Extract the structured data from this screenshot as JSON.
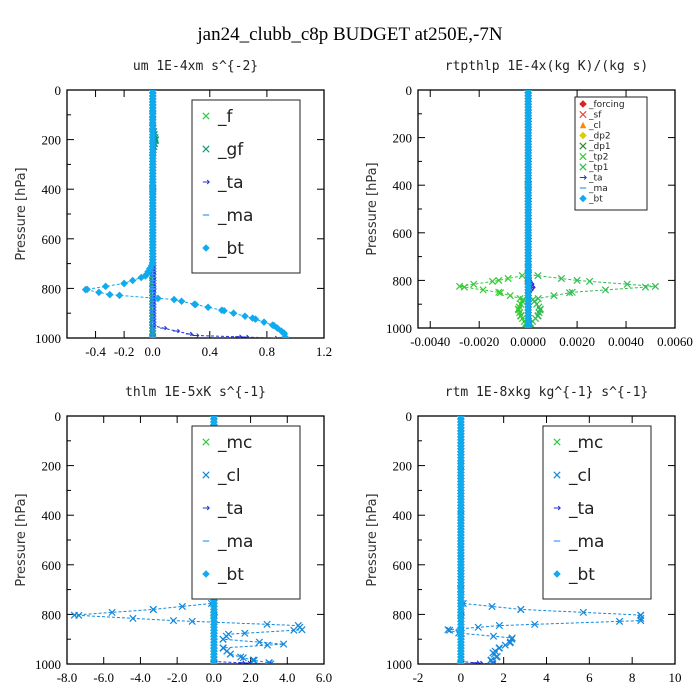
{
  "figure_title": "jan24_clubb_c8p  BUDGET at250E,-7N",
  "chart_data": [
    {
      "type": "line",
      "title": "um   1E-4xm s^{-2}",
      "ylabel": "Pressure [hPa]",
      "xlim": [
        -0.6,
        1.2
      ],
      "ylim": [
        1000,
        0
      ],
      "x_ticks": [
        -0.4,
        -0.2,
        0.0,
        0.4,
        0.8,
        1.2
      ],
      "x_tick_labels": [
        "-0.4",
        "-0.2",
        "0.0",
        "0.4",
        "0.8",
        "1.2"
      ],
      "y_ticks": [
        0,
        200,
        400,
        600,
        800,
        1000
      ],
      "y_tick_labels": [
        "0",
        "200",
        "400",
        "600",
        "800",
        "1000"
      ],
      "legend_size": "large",
      "legend_position": "top-right",
      "series": [
        {
          "name": "_f",
          "color": "#2ecc40",
          "marker": "x",
          "points": [
            [
              0,
              0
            ],
            [
              0,
              200
            ],
            [
              0,
              400
            ],
            [
              0,
              600
            ],
            [
              0,
              750
            ],
            [
              0,
              800
            ],
            [
              0,
              850
            ],
            [
              0,
              900
            ],
            [
              0,
              950
            ],
            [
              0,
              1000
            ]
          ]
        },
        {
          "name": "_gf",
          "color": "#109a7a",
          "marker": "x",
          "points": [
            [
              0,
              0
            ],
            [
              0,
              100
            ],
            [
              0,
              150
            ],
            [
              0.02,
              200
            ],
            [
              0,
              250
            ],
            [
              0,
              400
            ],
            [
              0,
              600
            ],
            [
              0,
              750
            ],
            [
              0,
              800
            ],
            [
              0,
              900
            ],
            [
              0,
              1000
            ]
          ]
        },
        {
          "name": "_ta",
          "color": "#2233dd",
          "marker": "arrow",
          "points": [
            [
              0,
              0
            ],
            [
              0,
              400
            ],
            [
              0,
              800
            ],
            [
              0,
              950
            ],
            [
              0.3,
              990
            ],
            [
              0.6,
              995
            ],
            [
              0.85,
              1000
            ]
          ]
        },
        {
          "name": "_ma",
          "color": "#3399ff",
          "marker": "dash",
          "points": [
            [
              0,
              0
            ],
            [
              0,
              400
            ],
            [
              0,
              800
            ],
            [
              0,
              1000
            ]
          ]
        },
        {
          "name": "_bt",
          "color": "#11aaee",
          "marker": "diamond",
          "points": [
            [
              0,
              0
            ],
            [
              0,
              600
            ],
            [
              0,
              700
            ],
            [
              -0.05,
              750
            ],
            [
              -0.2,
              780
            ],
            [
              -0.47,
              805
            ],
            [
              -0.3,
              825
            ],
            [
              0.15,
              845
            ],
            [
              0.3,
              865
            ],
            [
              0.5,
              890
            ],
            [
              0.7,
              920
            ],
            [
              0.85,
              950
            ],
            [
              0.92,
              980
            ],
            [
              0.93,
              1000
            ]
          ]
        }
      ]
    },
    {
      "type": "line",
      "title": "rtpthlp   1E-4x(kg K)/(kg s)",
      "ylabel": "Pressure [hPa]",
      "xlim": [
        -0.0045,
        0.006
      ],
      "ylim": [
        1000,
        0
      ],
      "x_ticks": [
        -0.004,
        -0.002,
        0.0,
        0.002,
        0.004,
        0.006
      ],
      "x_tick_labels": [
        "-0.0040",
        "-0.0020",
        "0.0000",
        "0.0020",
        "0.0040",
        "0.0060"
      ],
      "y_ticks": [
        0,
        200,
        400,
        600,
        800,
        1000
      ],
      "y_tick_labels": [
        "0",
        "200",
        "400",
        "600",
        "800",
        "1000"
      ],
      "legend_size": "small",
      "legend_position": "top-right",
      "series": [
        {
          "name": "_forcing",
          "color": "#dd2222",
          "marker": "diamond",
          "points": [
            [
              0,
              0
            ],
            [
              0,
              400
            ],
            [
              0,
              800
            ],
            [
              0,
              1000
            ]
          ]
        },
        {
          "name": "_sf",
          "color": "#ee4444",
          "marker": "x",
          "points": [
            [
              0,
              0
            ],
            [
              0,
              400
            ],
            [
              0,
              800
            ],
            [
              0,
              1000
            ]
          ]
        },
        {
          "name": "_cl",
          "color": "#ff8800",
          "marker": "triangle",
          "points": [
            [
              0,
              0
            ],
            [
              0,
              400
            ],
            [
              0,
              800
            ],
            [
              0,
              1000
            ]
          ]
        },
        {
          "name": "_dp2",
          "color": "#ddcc00",
          "marker": "diamond",
          "points": [
            [
              0,
              0
            ],
            [
              0,
              400
            ],
            [
              0,
              800
            ],
            [
              0,
              1000
            ]
          ]
        },
        {
          "name": "_dp1",
          "color": "#338833",
          "marker": "x",
          "points": [
            [
              0,
              0
            ],
            [
              0,
              400
            ],
            [
              0,
              800
            ],
            [
              0,
              1000
            ]
          ]
        },
        {
          "name": "_tp2",
          "color": "#33cc33",
          "marker": "x",
          "points": [
            [
              0,
              0
            ],
            [
              0,
              750
            ],
            [
              0,
              775
            ],
            [
              -0.0012,
              800
            ],
            [
              -0.0028,
              825
            ],
            [
              -0.0012,
              850
            ],
            [
              -0.0002,
              880
            ],
            [
              -0.0004,
              920
            ],
            [
              -0.0003,
              950
            ],
            [
              -0.0001,
              980
            ],
            [
              0,
              1000
            ]
          ]
        },
        {
          "name": "_tp1",
          "color": "#33bb55",
          "marker": "x",
          "points": [
            [
              0,
              0
            ],
            [
              0,
              750
            ],
            [
              0,
              775
            ],
            [
              0.002,
              800
            ],
            [
              0.0052,
              825
            ],
            [
              0.0018,
              850
            ],
            [
              0.0002,
              880
            ],
            [
              0.0005,
              920
            ],
            [
              0.0004,
              950
            ],
            [
              0.0001,
              980
            ],
            [
              0,
              1000
            ]
          ]
        },
        {
          "name": "_ta",
          "color": "#2233dd",
          "marker": "arrow",
          "points": [
            [
              0,
              0
            ],
            [
              0,
              800
            ],
            [
              0.0001,
              815
            ],
            [
              0.00015,
              830
            ],
            [
              0,
              850
            ],
            [
              0,
              1000
            ]
          ]
        },
        {
          "name": "_ma",
          "color": "#3399ff",
          "marker": "dash",
          "points": [
            [
              0,
              0
            ],
            [
              0,
              1000
            ]
          ]
        },
        {
          "name": "_bt",
          "color": "#11aaee",
          "marker": "diamond",
          "points": [
            [
              0,
              0
            ],
            [
              0,
              1000
            ]
          ]
        }
      ]
    },
    {
      "type": "line",
      "title": "thlm   1E-5xK s^{-1}",
      "ylabel": "Pressure [hPa]",
      "xlim": [
        -8.0,
        6.0
      ],
      "ylim": [
        1000,
        0
      ],
      "x_ticks": [
        -8.0,
        -6.0,
        -4.0,
        -2.0,
        0.0,
        2.0,
        4.0,
        6.0
      ],
      "x_tick_labels": [
        "-8.0",
        "-6.0",
        "-4.0",
        "-2.0",
        "0.0",
        "2.0",
        "4.0",
        "6.0"
      ],
      "y_ticks": [
        0,
        200,
        400,
        600,
        800,
        1000
      ],
      "y_tick_labels": [
        "0",
        "200",
        "400",
        "600",
        "800",
        "1000"
      ],
      "legend_size": "large",
      "legend_position": "top-right",
      "series": [
        {
          "name": "_mc",
          "color": "#2ecc40",
          "marker": "x",
          "points": [
            [
              0,
              0
            ],
            [
              0,
              200
            ],
            [
              0,
              400
            ],
            [
              0,
              600
            ],
            [
              0,
              800
            ],
            [
              0,
              1000
            ]
          ]
        },
        {
          "name": "_cl",
          "color": "#1188dd",
          "marker": "x",
          "points": [
            [
              0,
              0
            ],
            [
              0,
              700
            ],
            [
              0,
              755
            ],
            [
              -3.3,
              780
            ],
            [
              -7.6,
              803
            ],
            [
              -2.2,
              825
            ],
            [
              4.6,
              845
            ],
            [
              4.8,
              862
            ],
            [
              0.8,
              880
            ],
            [
              0.5,
              900
            ],
            [
              3.8,
              920
            ],
            [
              0.5,
              935
            ],
            [
              0.9,
              960
            ],
            [
              1.6,
              975
            ],
            [
              2.2,
              985
            ],
            [
              3.0,
              995
            ],
            [
              3.1,
              1000
            ]
          ]
        },
        {
          "name": "_ta",
          "color": "#2233dd",
          "marker": "arrow",
          "points": [
            [
              0,
              0
            ],
            [
              0,
              800
            ],
            [
              0,
              990
            ],
            [
              1.5,
              995
            ],
            [
              3.0,
              1000
            ]
          ]
        },
        {
          "name": "_ma",
          "color": "#3399ff",
          "marker": "dash",
          "points": [
            [
              0,
              0
            ],
            [
              0,
              1000
            ]
          ]
        },
        {
          "name": "_bt",
          "color": "#11aaee",
          "marker": "diamond",
          "points": [
            [
              0,
              0
            ],
            [
              0,
              1000
            ]
          ]
        }
      ]
    },
    {
      "type": "line",
      "title": "rtm   1E-8xkg kg^{-1} s^{-1}",
      "ylabel": "Pressure [hPa]",
      "xlim": [
        -2,
        10
      ],
      "ylim": [
        1000,
        0
      ],
      "x_ticks": [
        -2,
        0,
        2,
        4,
        6,
        8,
        10
      ],
      "x_tick_labels": [
        "-2",
        "0",
        "2",
        "4",
        "6",
        "8",
        "10"
      ],
      "y_ticks": [
        0,
        200,
        400,
        600,
        800,
        1000
      ],
      "y_tick_labels": [
        "0",
        "200",
        "400",
        "600",
        "800",
        "1000"
      ],
      "legend_size": "large",
      "legend_position": "top-right",
      "series": [
        {
          "name": "_mc",
          "color": "#2ecc40",
          "marker": "x",
          "points": [
            [
              0,
              0
            ],
            [
              0,
              200
            ],
            [
              0,
              400
            ],
            [
              0,
              600
            ],
            [
              0,
              800
            ],
            [
              0,
              1000
            ]
          ]
        },
        {
          "name": "_cl",
          "color": "#1188dd",
          "marker": "x",
          "points": [
            [
              0,
              0
            ],
            [
              0,
              700
            ],
            [
              0,
              755
            ],
            [
              2.8,
              780
            ],
            [
              8.4,
              803
            ],
            [
              8.4,
              825
            ],
            [
              1.8,
              845
            ],
            [
              -0.6,
              862
            ],
            [
              -0.1,
              875
            ],
            [
              2.4,
              895
            ],
            [
              2.3,
              915
            ],
            [
              1.8,
              935
            ],
            [
              1.5,
              955
            ],
            [
              1.7,
              970
            ],
            [
              1.4,
              985
            ],
            [
              1.5,
              1000
            ]
          ]
        },
        {
          "name": "_ta",
          "color": "#2233dd",
          "marker": "arrow",
          "points": [
            [
              0,
              0
            ],
            [
              0,
              800
            ],
            [
              0,
              990
            ],
            [
              0.7,
              995
            ],
            [
              1.5,
              1000
            ]
          ]
        },
        {
          "name": "_ma",
          "color": "#3399ff",
          "marker": "dash",
          "points": [
            [
              0,
              0
            ],
            [
              0,
              1000
            ]
          ]
        },
        {
          "name": "_bt",
          "color": "#11aaee",
          "marker": "diamond",
          "points": [
            [
              0,
              0
            ],
            [
              0,
              1000
            ]
          ]
        }
      ]
    }
  ]
}
